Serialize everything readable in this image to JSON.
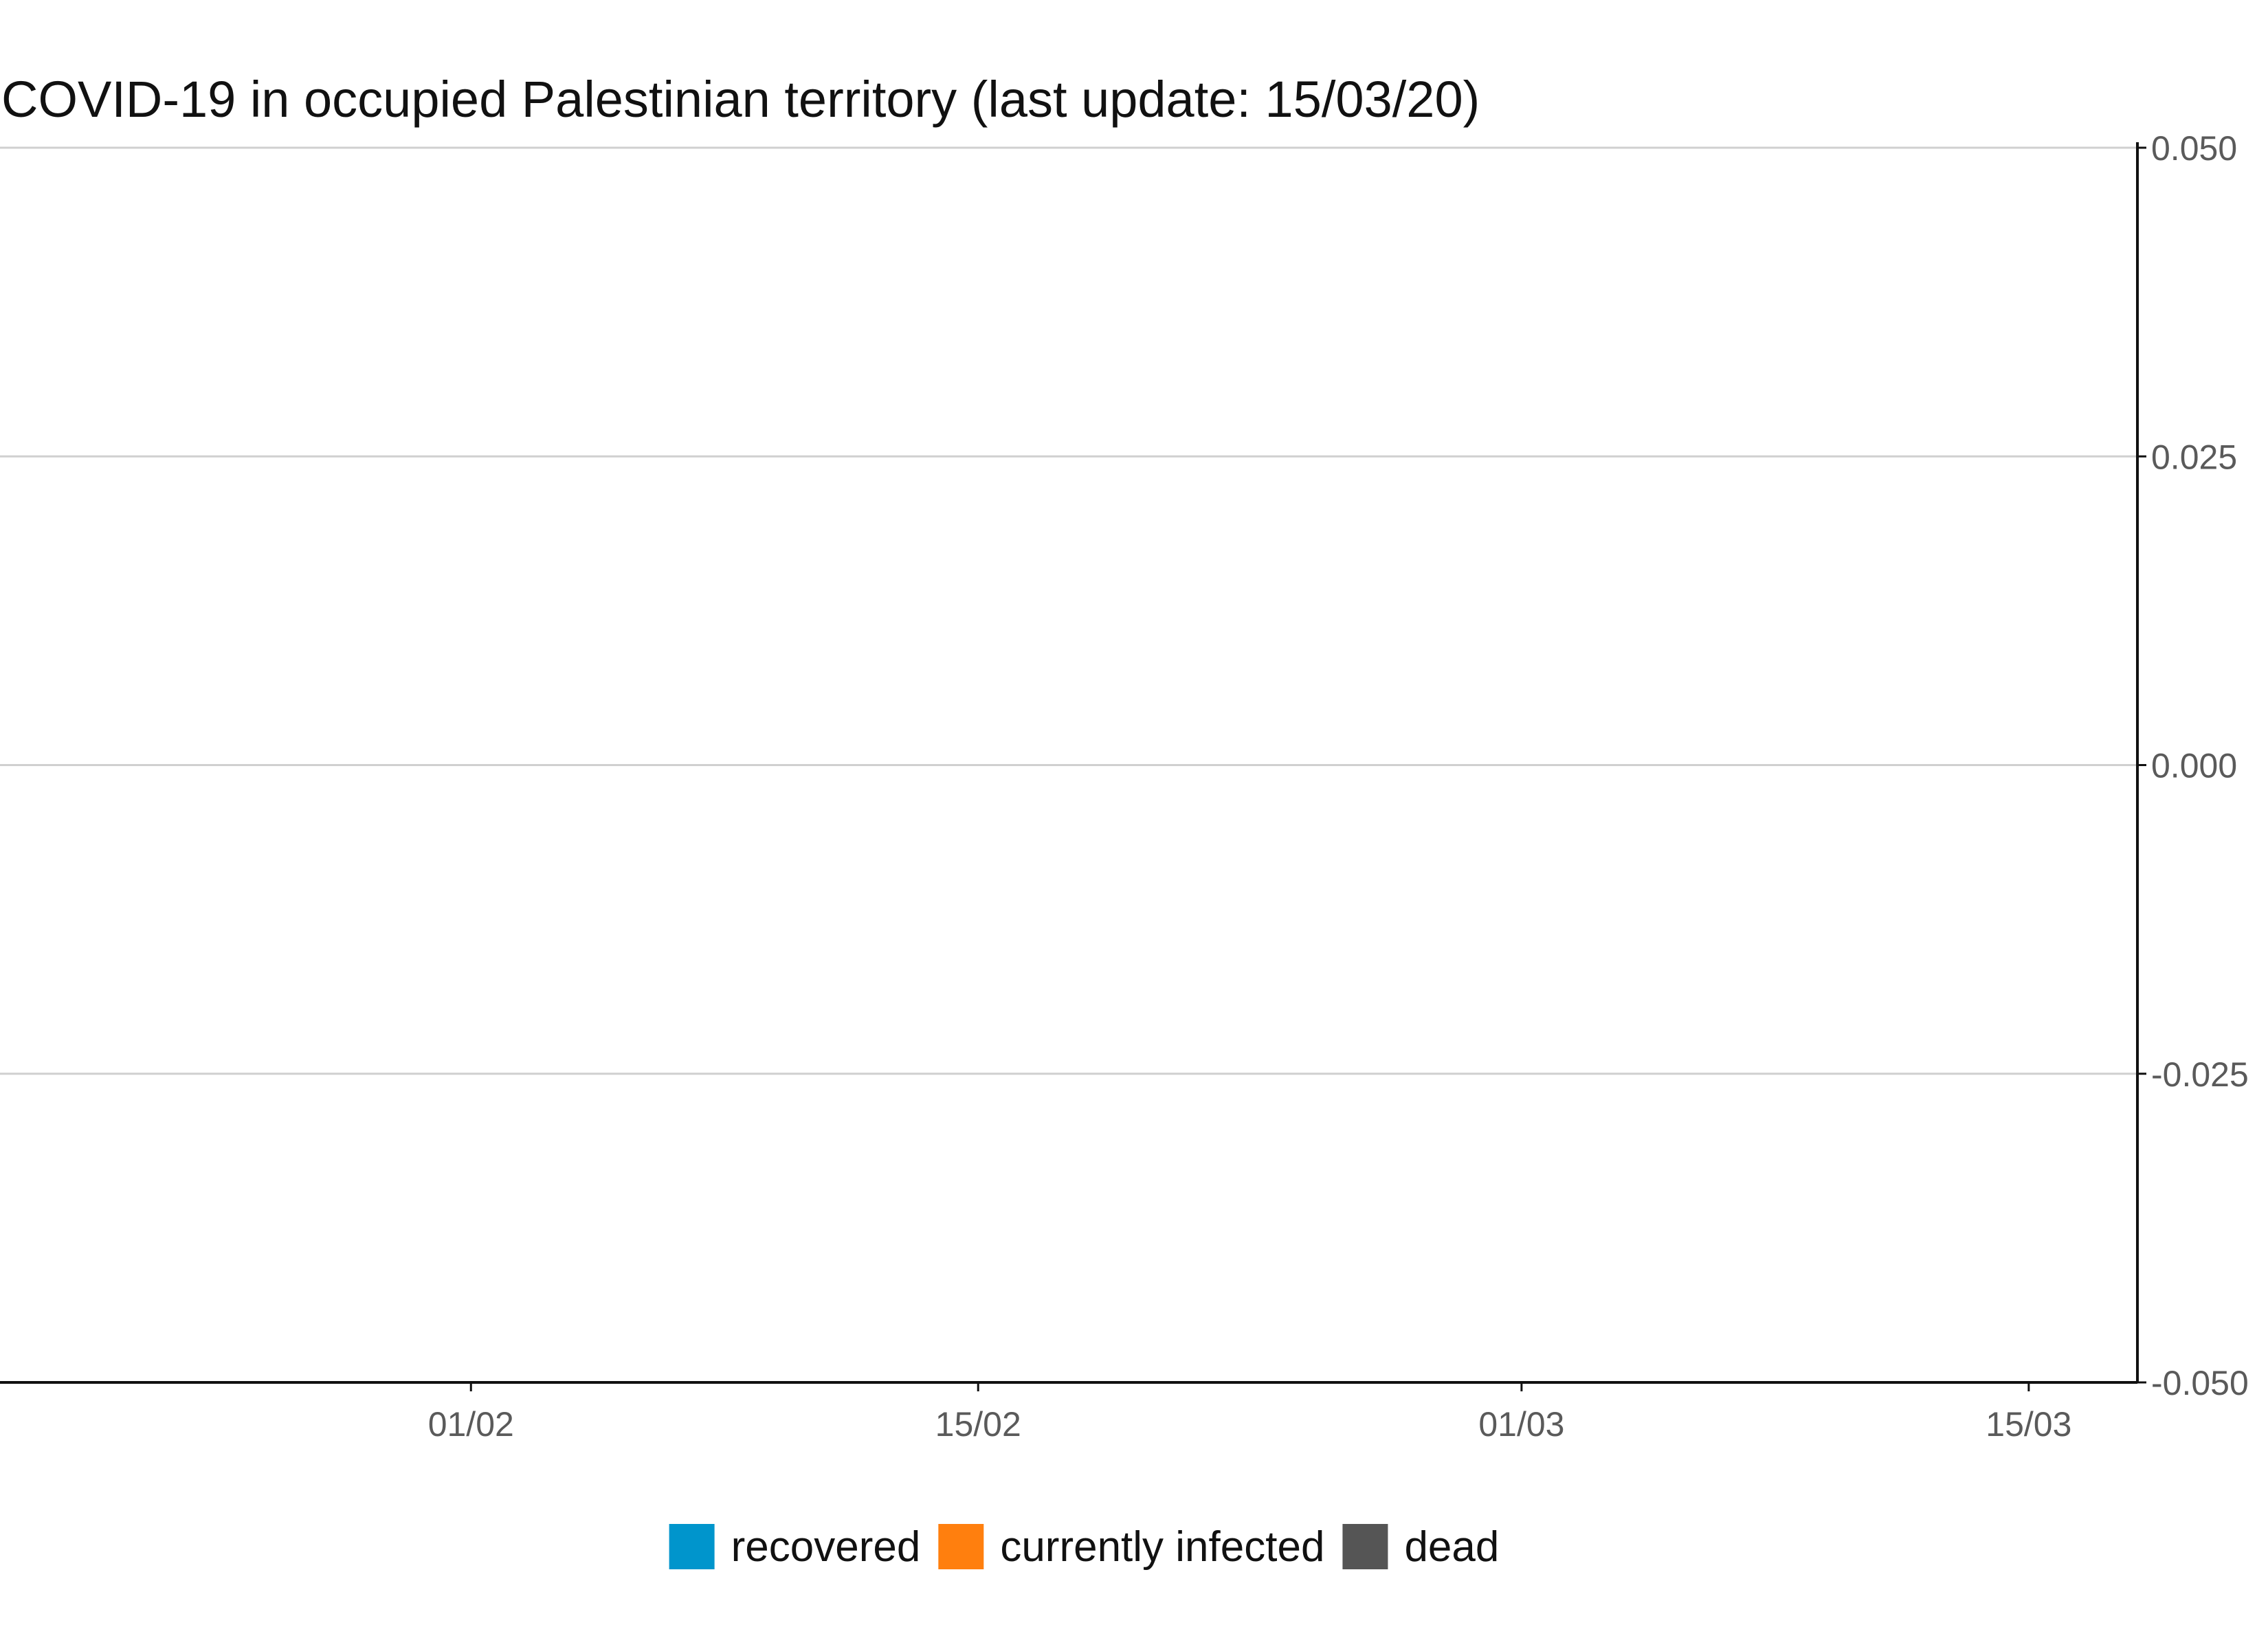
{
  "chart_data": {
    "type": "area",
    "title": "COVID-19 in occupied Palestinian territory (last update: 15/03/20)",
    "xlabel": "",
    "ylabel": "",
    "x_ticks": [
      "01/02",
      "15/02",
      "01/03",
      "15/03"
    ],
    "x_tick_dates": [
      "2020-02-01",
      "2020-02-15",
      "2020-03-01",
      "2020-03-15"
    ],
    "xlim": [
      "2020-01-19",
      "2020-03-18"
    ],
    "ylim": [
      -0.05,
      0.05
    ],
    "y_ticks": [
      0.05,
      0.025,
      0.0,
      -0.025,
      -0.05
    ],
    "y_tick_labels": [
      "0.050",
      "0.025",
      "0.000",
      "-0.025",
      "-0.050"
    ],
    "y_axis_position": "right",
    "grid": true,
    "legend_position": "bottom",
    "series": [
      {
        "name": "recovered",
        "color": "#0095cc",
        "values": []
      },
      {
        "name": "currently infected",
        "color": "#ff7f0e",
        "values": []
      },
      {
        "name": "dead",
        "color": "#555555",
        "values": []
      }
    ]
  }
}
